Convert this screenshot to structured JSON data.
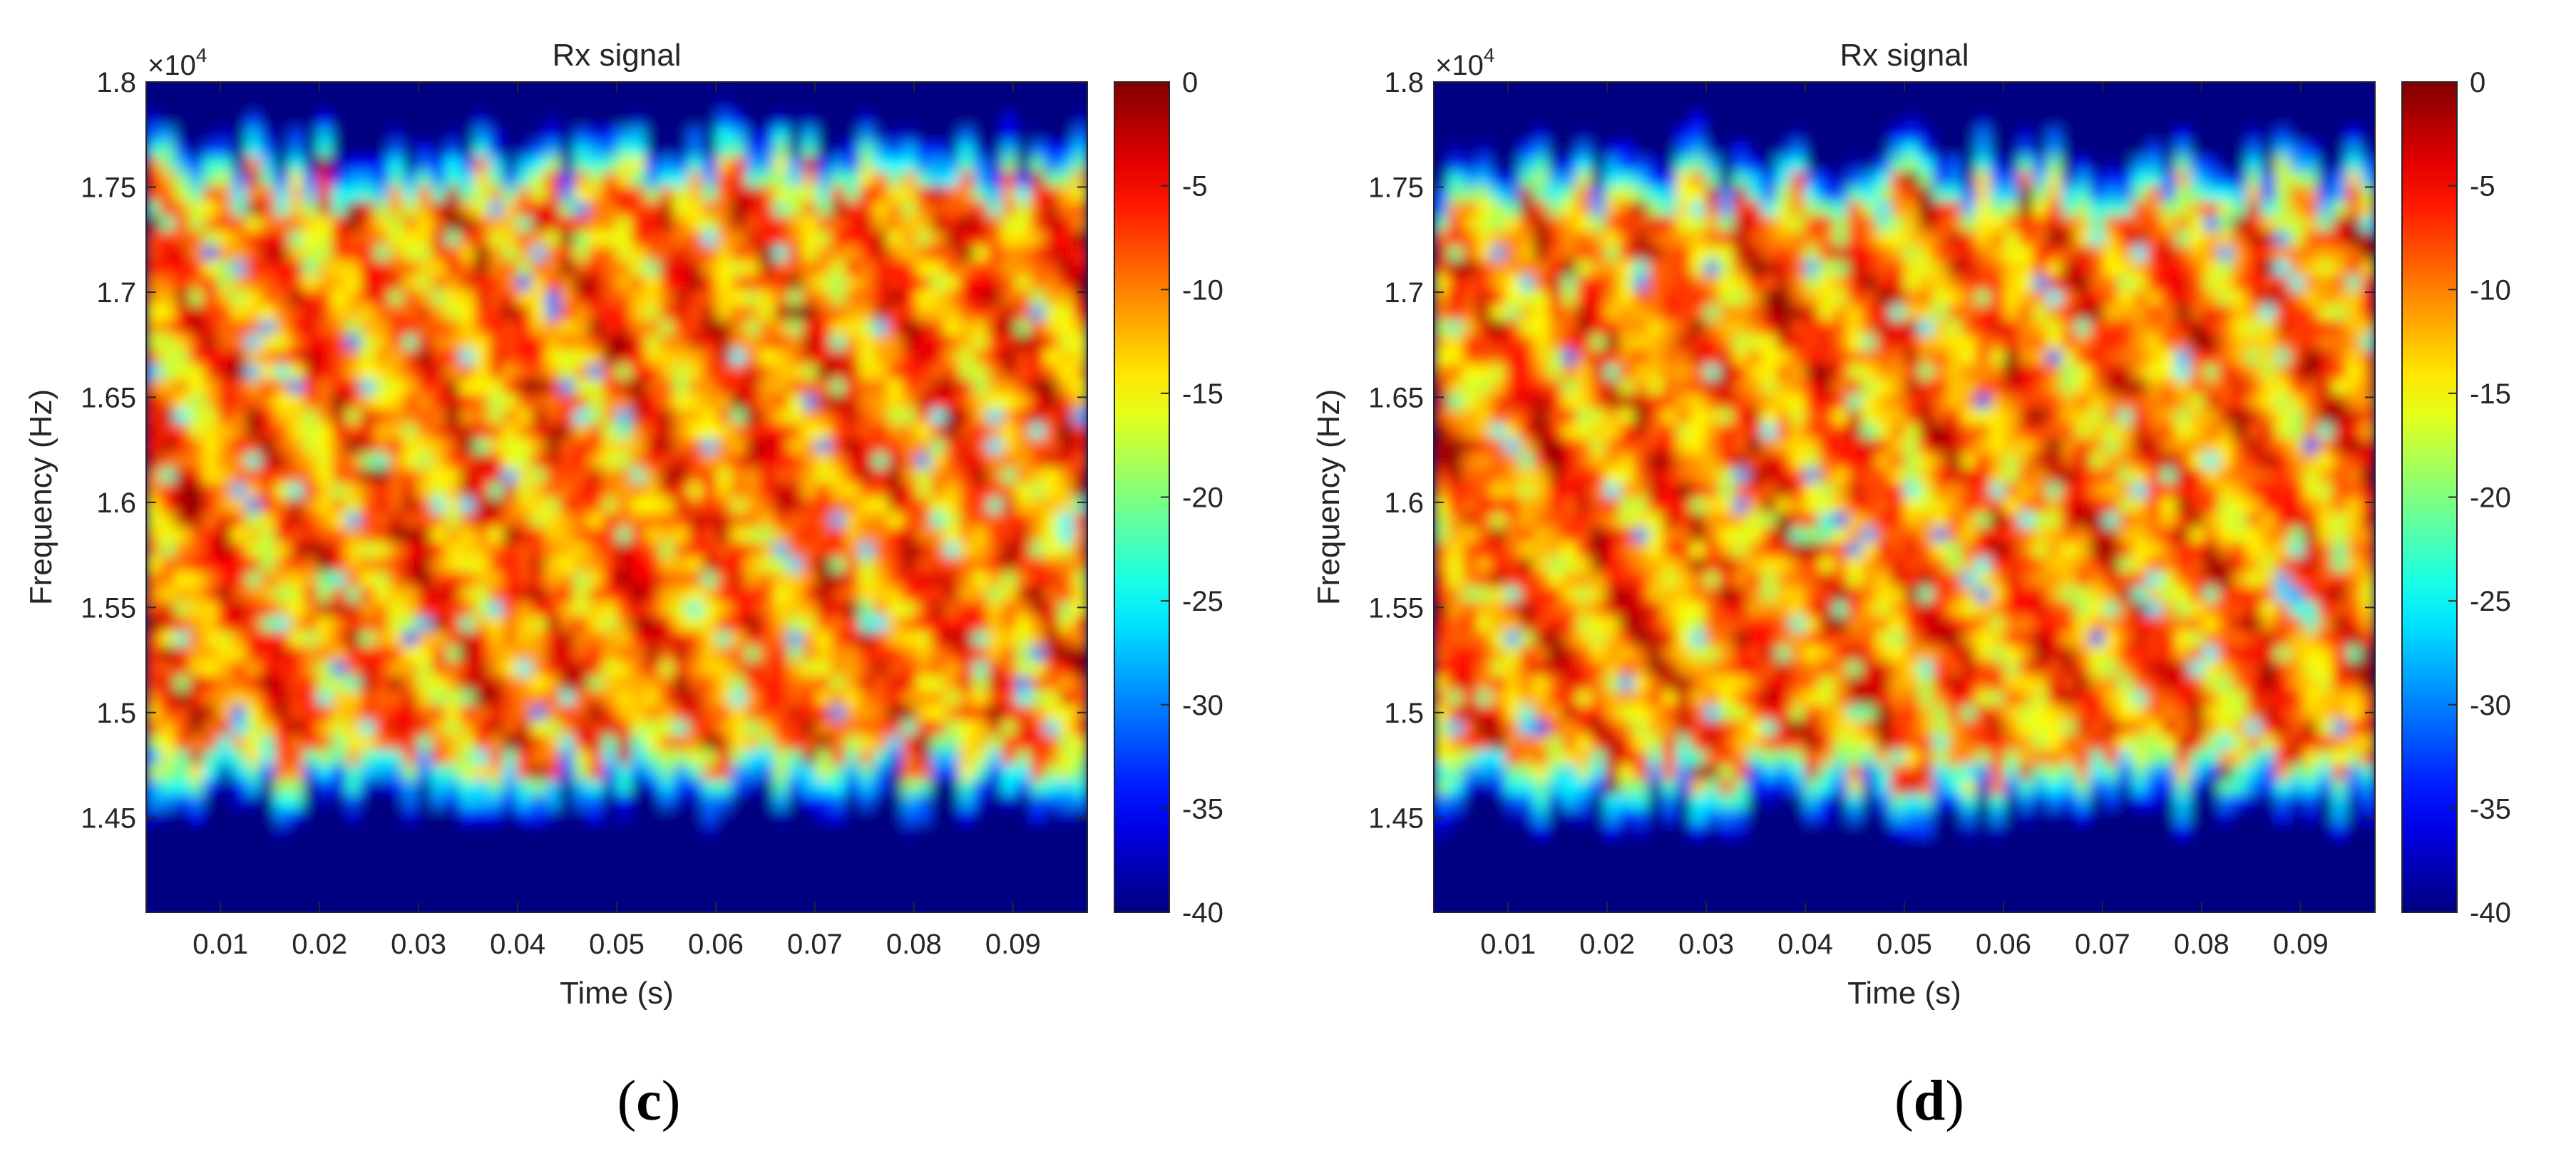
{
  "chart_data": [
    {
      "panel_label": "c",
      "type": "heatmap",
      "title": "Rx signal",
      "xlabel": "Time (s)",
      "ylabel": "Frequency (Hz)",
      "y_exponent_label": "×10",
      "y_exponent_power": "4",
      "xlim": [
        0.0025,
        0.0975
      ],
      "ylim": [
        14050,
        18000
      ],
      "x_ticks": [
        0.01,
        0.02,
        0.03,
        0.04,
        0.05,
        0.06,
        0.07,
        0.08,
        0.09
      ],
      "x_tick_labels": [
        "0.01",
        "0.02",
        "0.03",
        "0.04",
        "0.05",
        "0.06",
        "0.07",
        "0.08",
        "0.09"
      ],
      "y_ticks": [
        14500,
        15000,
        15500,
        16000,
        16500,
        17000,
        17500,
        18000
      ],
      "y_tick_labels": [
        "1.45",
        "1.5",
        "1.55",
        "1.6",
        "1.65",
        "1.7",
        "1.75",
        "1.8"
      ],
      "colorbar": {
        "range": [
          -40,
          0
        ],
        "ticks": [
          0,
          -5,
          -10,
          -15,
          -20,
          -25,
          -30,
          -35,
          -40
        ],
        "tick_labels": [
          "0",
          "-5",
          "-10",
          "-15",
          "-20",
          "-25",
          "-30",
          "-35",
          "-40"
        ],
        "colormap": "jet"
      },
      "grid": false,
      "band": {
        "f_low": 14800,
        "f_high": 17500,
        "seed": 7
      }
    },
    {
      "panel_label": "d",
      "type": "heatmap",
      "title": "Rx signal",
      "xlabel": "Time (s)",
      "ylabel": "Frequency (Hz)",
      "y_exponent_label": "×10",
      "y_exponent_power": "4",
      "xlim": [
        0.0025,
        0.0975
      ],
      "ylim": [
        14050,
        18000
      ],
      "x_ticks": [
        0.01,
        0.02,
        0.03,
        0.04,
        0.05,
        0.06,
        0.07,
        0.08,
        0.09
      ],
      "x_tick_labels": [
        "0.01",
        "0.02",
        "0.03",
        "0.04",
        "0.05",
        "0.06",
        "0.07",
        "0.08",
        "0.09"
      ],
      "y_ticks": [
        14500,
        15000,
        15500,
        16000,
        16500,
        17000,
        17500,
        18000
      ],
      "y_tick_labels": [
        "1.45",
        "1.5",
        "1.55",
        "1.6",
        "1.65",
        "1.7",
        "1.75",
        "1.8"
      ],
      "colorbar": {
        "range": [
          -40,
          0
        ],
        "ticks": [
          0,
          -5,
          -10,
          -15,
          -20,
          -25,
          -30,
          -35,
          -40
        ],
        "tick_labels": [
          "0",
          "-5",
          "-10",
          "-15",
          "-20",
          "-25",
          "-30",
          "-35",
          "-40"
        ],
        "colormap": "jet"
      },
      "grid": false,
      "band": {
        "f_low": 14750,
        "f_high": 17450,
        "seed": 19
      }
    }
  ]
}
